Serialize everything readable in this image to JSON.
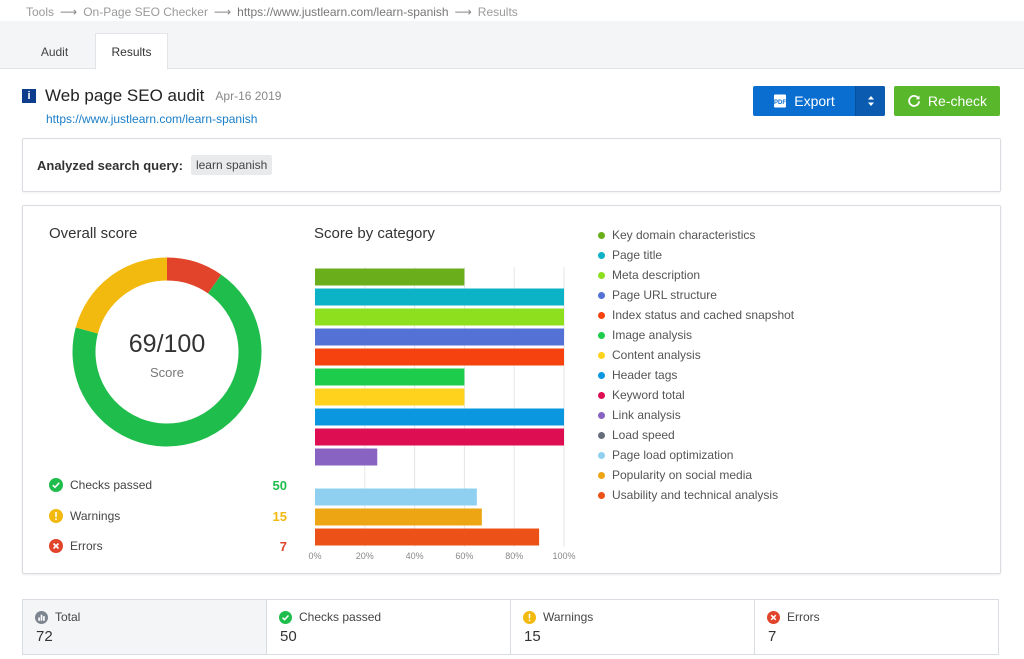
{
  "breadcrumb": {
    "items": [
      "Tools",
      "On-Page SEO Checker",
      "https://www.justlearn.com/learn-spanish",
      "Results"
    ]
  },
  "tabs": [
    {
      "label": "Audit",
      "active": false
    },
    {
      "label": "Results",
      "active": true
    }
  ],
  "header": {
    "icon_letter": "i",
    "title": "Web page SEO audit",
    "date": "Apr-16 2019",
    "url": "https://www.justlearn.com/learn-spanish",
    "export_label": "Export",
    "recheck_label": "Re-check"
  },
  "query": {
    "label": "Analyzed search query:",
    "value": "learn spanish"
  },
  "overall": {
    "title": "Overall score",
    "score_text": "69/100",
    "score_label": "Score",
    "donut": {
      "passed": 50,
      "warnings": 15,
      "errors": 7
    },
    "stats": [
      {
        "label": "Checks passed",
        "value": "50",
        "color": "#1fbd4b",
        "icon": "check-circle-icon"
      },
      {
        "label": "Warnings",
        "value": "15",
        "color": "#f2b90f",
        "icon": "warning-circle-icon"
      },
      {
        "label": "Errors",
        "value": "7",
        "color": "#e1442a",
        "icon": "error-circle-icon"
      }
    ]
  },
  "chart_data": {
    "type": "bar",
    "orientation": "horizontal",
    "title": "Score by category",
    "xlim": [
      0,
      100
    ],
    "xticks": [
      "0%",
      "20%",
      "40%",
      "60%",
      "80%",
      "100%"
    ],
    "categories": [
      "Key domain characteristics",
      "Page title",
      "Meta description",
      "Page URL structure",
      "Index status and cached snapshot",
      "Image analysis",
      "Content analysis",
      "Header tags",
      "Keyword total",
      "Link analysis",
      "Load speed",
      "Page load optimization",
      "Popularity on social media",
      "Usability and technical analysis"
    ],
    "values": [
      60,
      100,
      100,
      100,
      100,
      60,
      60,
      100,
      100,
      25,
      0,
      65,
      67,
      90
    ],
    "colors": [
      "#6aae1b",
      "#0cb3c6",
      "#8ee01f",
      "#5471d6",
      "#f5420f",
      "#1ccc4a",
      "#ffd21e",
      "#0a97e0",
      "#dd0e52",
      "#8863c2",
      "#666e7c",
      "#8fd0f0",
      "#eda514",
      "#ec5117"
    ],
    "legend_position": "right",
    "grid": true
  },
  "summary": [
    {
      "label": "Total",
      "value": "72",
      "icon": "bar-chart-circle-icon",
      "color": "#7d8590"
    },
    {
      "label": "Checks passed",
      "value": "50",
      "icon": "check-circle-icon",
      "color": "#1fbd4b"
    },
    {
      "label": "Warnings",
      "value": "15",
      "icon": "warning-circle-icon",
      "color": "#f2b90f"
    },
    {
      "label": "Errors",
      "value": "7",
      "icon": "error-circle-icon",
      "color": "#e1442a"
    }
  ]
}
